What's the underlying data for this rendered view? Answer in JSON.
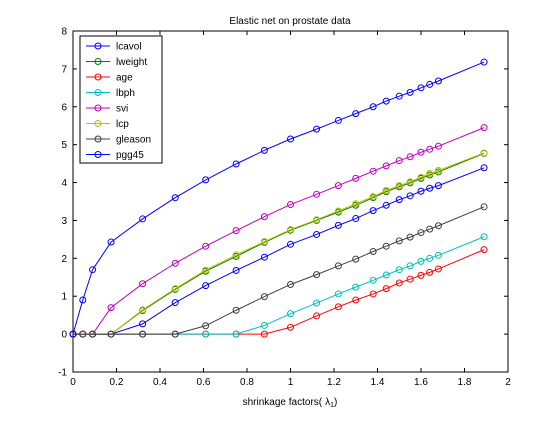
{
  "chart_data": {
    "type": "line",
    "title": "Elastic net on prostate data",
    "xlabel": "shrinkage factors(",
    "xlabel_symbol": "λ",
    "xlabel_subscript": "1",
    "xlabel_close": ")",
    "ylabel": "",
    "xlim": [
      0,
      2
    ],
    "ylim": [
      -1,
      8
    ],
    "xticks": [
      0,
      0.2,
      0.4,
      0.6,
      0.8,
      1,
      1.2,
      1.4,
      1.6,
      1.8,
      2
    ],
    "yticks": [
      -1,
      0,
      1,
      2,
      3,
      4,
      5,
      6,
      7,
      8
    ],
    "grid": false,
    "legend_position": "top-left",
    "marker": "circle",
    "x": [
      0,
      0.045,
      0.09,
      0.175,
      0.32,
      0.47,
      0.61,
      0.75,
      0.88,
      1.0,
      1.12,
      1.22,
      1.3,
      1.38,
      1.44,
      1.5,
      1.55,
      1.6,
      1.64,
      1.68,
      1.89
    ],
    "series": [
      {
        "name": "lcavol",
        "color": "#0000ff",
        "values": [
          0,
          0,
          0,
          0,
          0.27,
          0.83,
          1.28,
          1.68,
          2.03,
          2.37,
          2.63,
          2.87,
          3.05,
          3.26,
          3.4,
          3.55,
          3.65,
          3.77,
          3.85,
          3.92,
          4.39
        ]
      },
      {
        "name": "lweight",
        "color": "#008000",
        "values": [
          0,
          0,
          0,
          0,
          0.62,
          1.18,
          1.66,
          2.05,
          2.42,
          2.74,
          3.0,
          3.22,
          3.4,
          3.6,
          3.76,
          3.89,
          3.99,
          4.11,
          4.2,
          4.28,
          4.77
        ]
      },
      {
        "name": "age",
        "color": "#ff0000",
        "values": [
          0,
          0,
          0,
          0,
          0,
          0,
          0,
          0,
          0,
          0.18,
          0.48,
          0.72,
          0.9,
          1.06,
          1.2,
          1.35,
          1.45,
          1.55,
          1.63,
          1.72,
          2.23
        ]
      },
      {
        "name": "lbph",
        "color": "#00bfbf",
        "values": [
          0,
          0,
          0,
          0,
          0,
          0,
          0,
          0,
          0.23,
          0.54,
          0.82,
          1.06,
          1.24,
          1.42,
          1.56,
          1.7,
          1.8,
          1.92,
          2.0,
          2.08,
          2.57
        ]
      },
      {
        "name": "svi",
        "color": "#bf00bf",
        "values": [
          0,
          0,
          0,
          0.7,
          1.33,
          1.87,
          2.32,
          2.73,
          3.1,
          3.42,
          3.69,
          3.92,
          4.11,
          4.3,
          4.44,
          4.58,
          4.68,
          4.8,
          4.88,
          4.96,
          5.45
        ]
      },
      {
        "name": "lcp",
        "color": "#bfbf00",
        "values": [
          0,
          0,
          0,
          0,
          0.64,
          1.2,
          1.69,
          2.09,
          2.44,
          2.76,
          3.02,
          3.25,
          3.44,
          3.63,
          3.79,
          3.92,
          4.02,
          4.14,
          4.24,
          4.32,
          4.78
        ]
      },
      {
        "name": "gleason",
        "color": "#404040",
        "values": [
          0,
          0,
          0,
          0,
          0,
          0,
          0.22,
          0.63,
          0.99,
          1.31,
          1.57,
          1.8,
          1.98,
          2.18,
          2.32,
          2.46,
          2.56,
          2.68,
          2.77,
          2.86,
          3.36
        ]
      },
      {
        "name": "pgg45",
        "color": "#0000ff",
        "values": [
          0,
          0.9,
          1.7,
          2.43,
          3.04,
          3.6,
          4.07,
          4.49,
          4.85,
          5.15,
          5.41,
          5.64,
          5.82,
          6.0,
          6.15,
          6.28,
          6.38,
          6.5,
          6.59,
          6.68,
          7.18
        ]
      }
    ]
  }
}
